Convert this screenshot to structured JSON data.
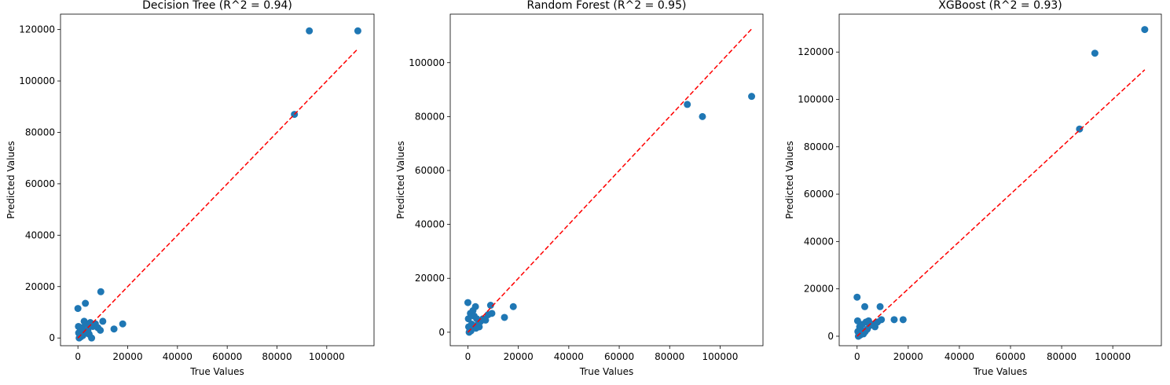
{
  "chart_data": [
    {
      "type": "scatter",
      "title": "Decision Tree (R^2 = 0.94)",
      "xlabel": "True Values",
      "ylabel": "Predicted Values",
      "xlim": [
        -7000,
        119000
      ],
      "ylim": [
        -3000,
        126000
      ],
      "xticks": [
        0,
        20000,
        40000,
        60000,
        80000,
        100000
      ],
      "yticks": [
        0,
        20000,
        40000,
        60000,
        80000,
        100000,
        120000
      ],
      "point_color": "#1f77b4",
      "reference_line": {
        "color": "#ff0000",
        "style": "dashed",
        "from": [
          0,
          0
        ],
        "to": [
          112500,
          112500
        ]
      },
      "points": [
        [
          0,
          11500
        ],
        [
          200,
          4500
        ],
        [
          300,
          2000
        ],
        [
          500,
          0
        ],
        [
          800,
          1500
        ],
        [
          1000,
          3000
        ],
        [
          1200,
          500
        ],
        [
          1500,
          2500
        ],
        [
          1800,
          4000
        ],
        [
          2000,
          1000
        ],
        [
          2500,
          6500
        ],
        [
          3000,
          13500
        ],
        [
          3200,
          2000
        ],
        [
          3500,
          5500
        ],
        [
          4000,
          3000
        ],
        [
          4500,
          1500
        ],
        [
          5000,
          6000
        ],
        [
          5500,
          0
        ],
        [
          6000,
          4500
        ],
        [
          7000,
          5500
        ],
        [
          8000,
          4000
        ],
        [
          9000,
          3000
        ],
        [
          9200,
          18000
        ],
        [
          10000,
          6500
        ],
        [
          14500,
          3500
        ],
        [
          18000,
          5500
        ],
        [
          87000,
          87000
        ],
        [
          93000,
          119500
        ],
        [
          112500,
          119500
        ]
      ]
    },
    {
      "type": "scatter",
      "title": "Random Forest (R^2 = 0.95)",
      "xlabel": "True Values",
      "ylabel": "Predicted Values",
      "xlim": [
        -7000,
        117000
      ],
      "ylim": [
        -5000,
        118000
      ],
      "xticks": [
        0,
        20000,
        40000,
        60000,
        80000,
        100000
      ],
      "yticks": [
        0,
        20000,
        40000,
        60000,
        80000,
        100000
      ],
      "point_color": "#1f77b4",
      "reference_line": {
        "color": "#ff0000",
        "style": "dashed",
        "from": [
          0,
          0
        ],
        "to": [
          112500,
          112500
        ]
      },
      "points": [
        [
          0,
          11000
        ],
        [
          200,
          5000
        ],
        [
          300,
          2000
        ],
        [
          500,
          0
        ],
        [
          800,
          1500
        ],
        [
          1000,
          7000
        ],
        [
          1200,
          500
        ],
        [
          1500,
          3000
        ],
        [
          2000,
          8000
        ],
        [
          2500,
          6000
        ],
        [
          3000,
          9500
        ],
        [
          3200,
          1500
        ],
        [
          3500,
          5000
        ],
        [
          4000,
          3000
        ],
        [
          4500,
          2000
        ],
        [
          5000,
          4000
        ],
        [
          6000,
          5000
        ],
        [
          7000,
          4500
        ],
        [
          8000,
          6500
        ],
        [
          9000,
          10000
        ],
        [
          9500,
          7000
        ],
        [
          14500,
          5500
        ],
        [
          18000,
          9500
        ],
        [
          87000,
          84500
        ],
        [
          93000,
          80000
        ],
        [
          112500,
          87500
        ]
      ]
    },
    {
      "type": "scatter",
      "title": "XGBoost (R^2 = 0.93)",
      "xlabel": "True Values",
      "ylabel": "Predicted Values",
      "xlim": [
        -7000,
        119000
      ],
      "ylim": [
        -4000,
        136000
      ],
      "xticks": [
        0,
        20000,
        40000,
        60000,
        80000,
        100000
      ],
      "yticks": [
        0,
        20000,
        40000,
        60000,
        80000,
        100000,
        120000
      ],
      "point_color": "#1f77b4",
      "reference_line": {
        "color": "#ff0000",
        "style": "dashed",
        "from": [
          0,
          0
        ],
        "to": [
          112500,
          112500
        ]
      },
      "points": [
        [
          0,
          16500
        ],
        [
          200,
          6500
        ],
        [
          300,
          2000
        ],
        [
          500,
          0
        ],
        [
          800,
          1500
        ],
        [
          1000,
          4000
        ],
        [
          1200,
          500
        ],
        [
          1500,
          3000
        ],
        [
          2000,
          5000
        ],
        [
          2500,
          1000
        ],
        [
          3000,
          12500
        ],
        [
          3200,
          2000
        ],
        [
          3500,
          6000
        ],
        [
          4000,
          3000
        ],
        [
          4500,
          6500
        ],
        [
          5000,
          4500
        ],
        [
          6000,
          5000
        ],
        [
          7000,
          4000
        ],
        [
          8000,
          6000
        ],
        [
          9000,
          12500
        ],
        [
          9500,
          7000
        ],
        [
          14500,
          7000
        ],
        [
          18000,
          7000
        ],
        [
          87000,
          87500
        ],
        [
          93000,
          119500
        ],
        [
          112500,
          129500
        ]
      ]
    }
  ]
}
